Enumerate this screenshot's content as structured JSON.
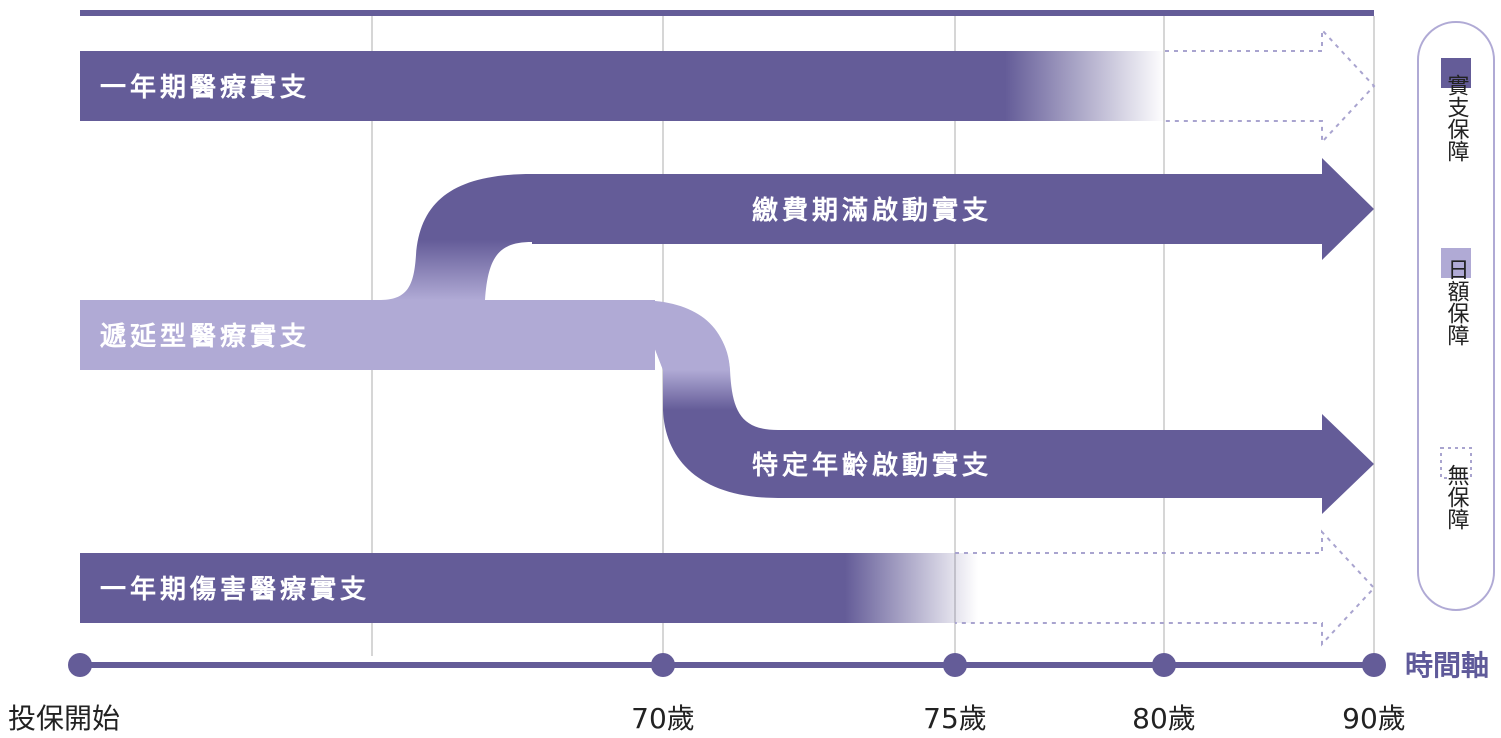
{
  "colors": {
    "dark": "#645c98",
    "light": "#b0aad5",
    "grid": "#c8c8c8",
    "dotted": "#a9a4cf"
  },
  "bars": {
    "annual_medical": "一年期醫療實支",
    "waiting_period": "繳費期滿啟動實支",
    "deferred": "遞延型醫療實支",
    "specific_age": "特定年齡啟動實支",
    "annual_injury": "一年期傷害醫療實支"
  },
  "axis": {
    "title": "時間軸",
    "ticks": [
      "投保開始",
      "70歲",
      "75歲",
      "80歲",
      "90歲"
    ]
  },
  "legend": {
    "dark": "實支保障",
    "light": "日額保障",
    "none": "無保障"
  }
}
